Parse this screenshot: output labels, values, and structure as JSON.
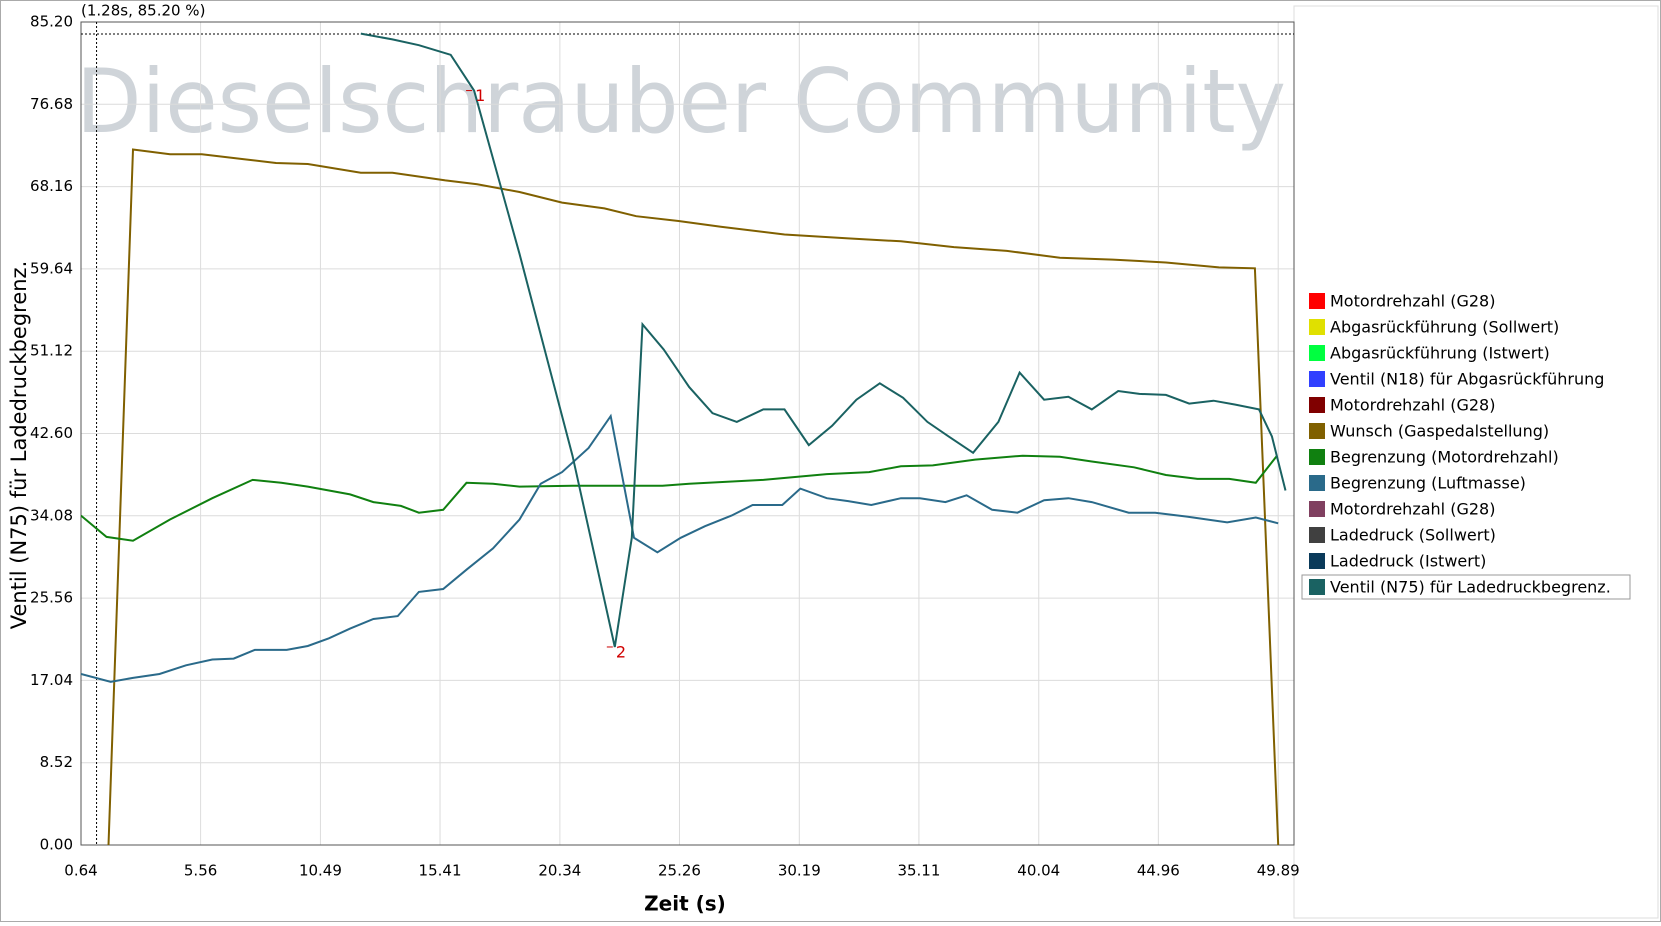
{
  "chart_data": {
    "type": "line",
    "watermark": "Dieselschrauber Community",
    "xlabel": "Zeit (s)",
    "ylabel": "Ventil (N75) für Ladedruckbegrenz.",
    "cursor": {
      "x": 1.28,
      "y": 85.2,
      "label": "(1.28s, 85.20 %)"
    },
    "xlim": [
      0.64,
      50.54
    ],
    "ylim": [
      0,
      85.2
    ],
    "xticks": [
      0.64,
      5.56,
      10.49,
      15.41,
      20.34,
      25.26,
      30.19,
      35.11,
      40.04,
      44.96,
      49.89
    ],
    "yticks": [
      {
        "value": 0,
        "label": "0.00"
      },
      8.52,
      17.04,
      25.56,
      34.08,
      {
        "value": 42.6,
        "label": "42.60"
      },
      51.12,
      59.64,
      68.16,
      76.68,
      {
        "value": 85.2,
        "label": "85.20"
      }
    ],
    "grid": true,
    "legend": "right",
    "selected_series": 11,
    "annotations": [
      {
        "label": "1",
        "x": 16.81,
        "y": 78.1
      },
      {
        "label": "2",
        "x": 22.6,
        "y": 20.5
      }
    ],
    "series": [
      {
        "name": "Motordrehzahl (G28)",
        "color": "#ff0000",
        "x": [],
        "values": []
      },
      {
        "name": "Abgasrückführung (Sollwert)",
        "color": "#e0e000",
        "x": [],
        "values": []
      },
      {
        "name": "Abgasrückführung (Istwert)",
        "color": "#00ff40",
        "x": [],
        "values": []
      },
      {
        "name": "Ventil (N18) für Abgasrückführung",
        "color": "#3040ff",
        "x": [],
        "values": []
      },
      {
        "name": "Motordrehzahl (G28)",
        "color": "#800000",
        "x": [],
        "values": []
      },
      {
        "name": "Wunsch (Gaspedalstellung)",
        "color": "#806000",
        "x": [
          1.77,
          2.78,
          4.3,
          5.61,
          7.35,
          8.66,
          9.97,
          12.15,
          13.45,
          15.63,
          16.94,
          18.68,
          20.43,
          22.17,
          23.48,
          25.22,
          26.96,
          29.58,
          32.2,
          34.37,
          36.55,
          38.73,
          40.91,
          43.09,
          45.27,
          47.45,
          48.93,
          49.89
        ],
        "values": [
          0,
          72.0,
          71.5,
          71.5,
          71.0,
          70.6,
          70.5,
          69.6,
          69.6,
          68.8,
          68.4,
          67.6,
          66.5,
          65.9,
          65.1,
          64.6,
          64.0,
          63.2,
          62.8,
          62.5,
          61.9,
          61.5,
          60.8,
          60.6,
          60.3,
          59.8,
          59.7,
          0
        ]
      },
      {
        "name": "Begrenzung (Motordrehzahl)",
        "color": "#108010",
        "x": [
          0.64,
          1.69,
          2.78,
          4.3,
          6.04,
          7.7,
          8.88,
          9.97,
          11.71,
          12.67,
          13.8,
          14.54,
          15.54,
          16.5,
          17.59,
          18.68,
          20.86,
          24.56,
          25.66,
          28.71,
          31.32,
          33.06,
          34.37,
          35.68,
          37.42,
          39.38,
          40.91,
          42.22,
          43.96,
          45.27,
          46.57,
          47.88,
          48.97,
          49.84
        ],
        "values": [
          34.1,
          31.9,
          31.5,
          33.7,
          35.9,
          37.8,
          37.5,
          37.1,
          36.3,
          35.5,
          35.1,
          34.4,
          34.7,
          37.5,
          37.4,
          37.1,
          37.2,
          37.2,
          37.4,
          37.8,
          38.4,
          38.6,
          39.2,
          39.3,
          39.9,
          40.3,
          40.2,
          39.7,
          39.1,
          38.3,
          37.9,
          37.9,
          37.5,
          40.3
        ]
      },
      {
        "name": "Begrenzung (Luftmasse)",
        "color": "#2a6a8a",
        "x": [
          0.64,
          1.86,
          2.78,
          3.87,
          4.96,
          6.04,
          6.92,
          7.79,
          9.1,
          9.97,
          10.84,
          11.71,
          12.67,
          13.67,
          14.54,
          15.54,
          16.5,
          17.59,
          18.68,
          19.55,
          20.43,
          21.52,
          22.43,
          23.39,
          24.35,
          25.31,
          26.31,
          27.4,
          28.27,
          29.49,
          30.23,
          31.32,
          32.2,
          33.15,
          34.37,
          35.15,
          36.2,
          37.07,
          38.12,
          39.16,
          40.26,
          41.26,
          42.22,
          43.74,
          44.83,
          46.14,
          47.79,
          48.97,
          49.89
        ],
        "values": [
          17.7,
          16.9,
          17.3,
          17.7,
          18.6,
          19.2,
          19.3,
          20.2,
          20.2,
          20.6,
          21.4,
          22.4,
          23.4,
          23.7,
          26.2,
          26.5,
          28.5,
          30.7,
          33.7,
          37.4,
          38.6,
          41.1,
          44.4,
          31.8,
          30.3,
          31.8,
          33.0,
          34.1,
          35.2,
          35.2,
          36.9,
          35.9,
          35.6,
          35.2,
          35.9,
          35.9,
          35.5,
          36.2,
          34.7,
          34.4,
          35.7,
          35.9,
          35.5,
          34.4,
          34.4,
          34.0,
          33.4,
          33.9,
          33.3
        ]
      },
      {
        "name": "Motordrehzahl (G28)",
        "color": "#804060",
        "x": [],
        "values": []
      },
      {
        "name": "Ladedruck (Sollwert)",
        "color": "#404040",
        "x": [],
        "values": []
      },
      {
        "name": "Ladedruck (Istwert)",
        "color": "#0a3a5a",
        "x": [],
        "values": []
      },
      {
        "name": "Ventil (N75) für Ladedruckbegrenz.",
        "color": "#1a6262",
        "x": [
          12.15,
          13.45,
          14.54,
          15.85,
          16.81,
          18.68,
          20.86,
          22.6,
          23.3,
          23.74,
          24.61,
          25.66,
          26.62,
          27.62,
          28.71,
          29.58,
          30.58,
          31.54,
          32.54,
          33.5,
          34.46,
          35.46,
          36.33,
          37.34,
          38.38,
          39.25,
          40.26,
          41.26,
          42.22,
          43.31,
          44.18,
          45.27,
          46.23,
          47.23,
          48.1,
          49.1,
          49.63,
          50.19
        ],
        "values": [
          84.0,
          83.4,
          82.8,
          81.8,
          78.1,
          61.2,
          40.3,
          20.5,
          31.8,
          53.9,
          51.3,
          47.4,
          44.7,
          43.8,
          45.1,
          45.1,
          41.4,
          43.4,
          46.1,
          47.8,
          46.3,
          43.8,
          42.3,
          40.6,
          43.8,
          48.9,
          46.1,
          46.4,
          45.1,
          47.0,
          46.7,
          46.6,
          45.7,
          46.0,
          45.6,
          45.1,
          42.3,
          36.7
        ]
      }
    ]
  }
}
